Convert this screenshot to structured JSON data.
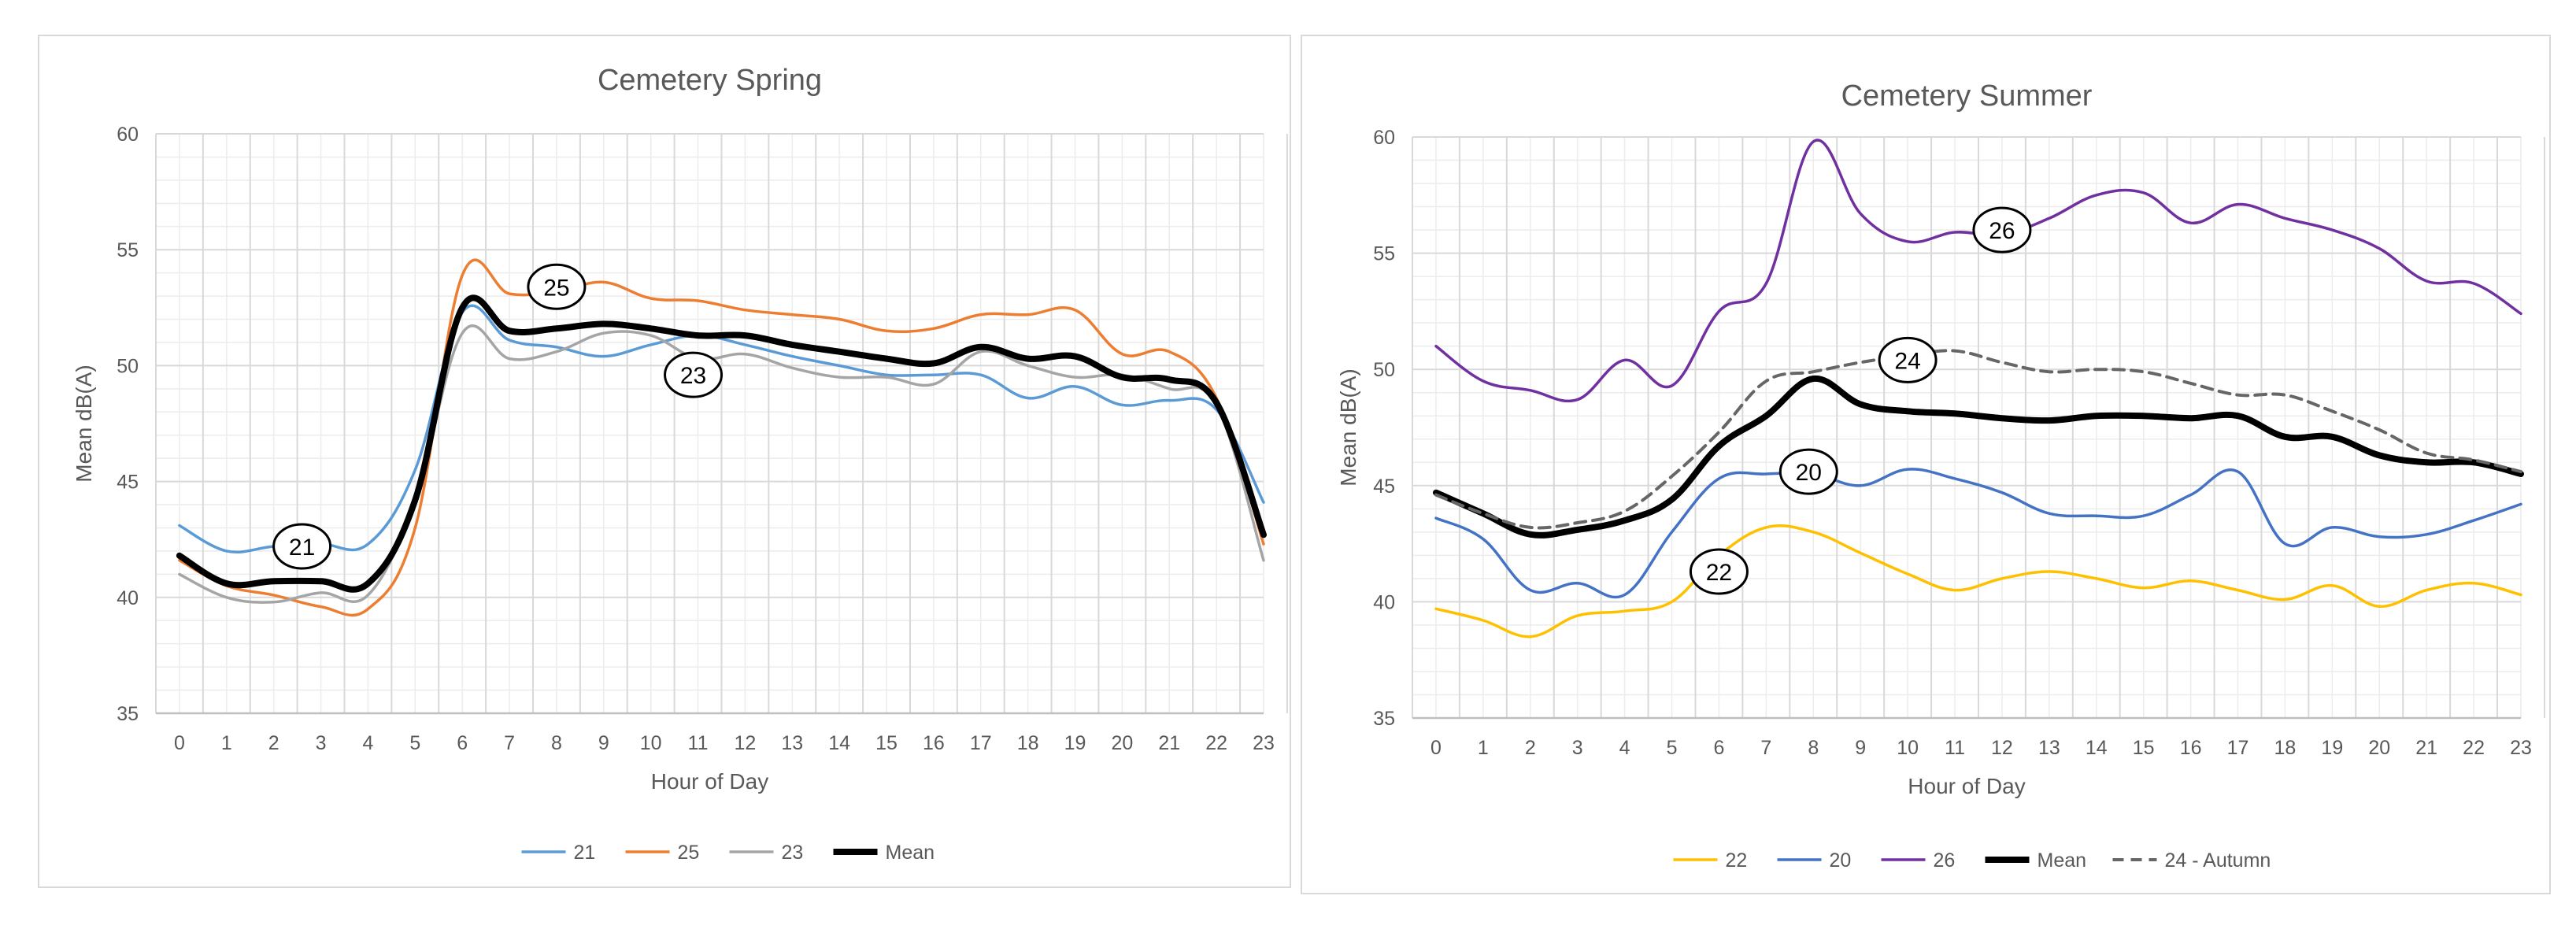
{
  "colors": {
    "s21": "#5b9bd5",
    "s25": "#ed7d31",
    "s23": "#a5a5a5",
    "mean": "#000000",
    "s22": "#ffc000",
    "s20": "#4472c4",
    "s26": "#7030a0",
    "s24": "#666666",
    "grid": "#d9d9d9",
    "text": "#595959"
  },
  "chart_data": [
    {
      "type": "line",
      "title": "Cemetery Spring",
      "xlabel": "Hour of Day",
      "ylabel": "Mean dB(A)",
      "ylim": [
        35,
        60
      ],
      "yticks": [
        "35",
        "40",
        "45",
        "50",
        "55",
        "60"
      ],
      "categories": [
        "0",
        "1",
        "2",
        "3",
        "4",
        "5",
        "6",
        "7",
        "8",
        "9",
        "10",
        "11",
        "12",
        "13",
        "14",
        "15",
        "16",
        "17",
        "18",
        "19",
        "20",
        "21",
        "22",
        "23"
      ],
      "legend_position": "bottom",
      "series": [
        {
          "name": "21",
          "color": "#5b9bd5",
          "width": 3.5,
          "dash": "",
          "values": [
            43.1,
            42.0,
            42.2,
            42.3,
            42.3,
            45.5,
            52.3,
            51.1,
            50.8,
            50.4,
            50.9,
            51.3,
            50.9,
            50.4,
            50.0,
            49.6,
            49.6,
            49.6,
            48.6,
            49.1,
            48.3,
            48.5,
            48.1,
            44.1
          ]
        },
        {
          "name": "25",
          "color": "#ed7d31",
          "width": 3.5,
          "dash": "",
          "values": [
            41.6,
            40.5,
            40.1,
            39.6,
            39.5,
            43.0,
            53.9,
            53.1,
            53.2,
            53.6,
            52.9,
            52.8,
            52.4,
            52.2,
            52.0,
            51.5,
            51.6,
            52.2,
            52.2,
            52.4,
            50.5,
            50.6,
            48.6,
            42.3
          ]
        },
        {
          "name": "23",
          "color": "#a5a5a5",
          "width": 3.5,
          "dash": "",
          "values": [
            41.0,
            40.0,
            39.8,
            40.2,
            40.1,
            44.2,
            51.4,
            50.3,
            50.6,
            51.4,
            51.3,
            50.3,
            50.5,
            49.9,
            49.5,
            49.5,
            49.2,
            50.6,
            50.0,
            49.5,
            49.6,
            49.0,
            48.3,
            41.6
          ]
        },
        {
          "name": "Mean",
          "color": "#000000",
          "width": 8,
          "dash": "",
          "values": [
            41.8,
            40.6,
            40.7,
            40.7,
            40.6,
            44.2,
            52.5,
            51.5,
            51.6,
            51.8,
            51.6,
            51.3,
            51.3,
            50.9,
            50.6,
            50.3,
            50.1,
            50.8,
            50.3,
            50.4,
            49.5,
            49.4,
            48.4,
            42.7
          ]
        }
      ],
      "annotations": [
        {
          "label": "21",
          "hour": 2.6,
          "value": 42.2
        },
        {
          "label": "25",
          "hour": 8.0,
          "value": 53.4
        },
        {
          "label": "23",
          "hour": 10.9,
          "value": 49.6
        }
      ]
    },
    {
      "type": "line",
      "title": "Cemetery Summer",
      "xlabel": "Hour of Day",
      "ylabel": "Mean dB(A)",
      "ylim": [
        35,
        60
      ],
      "yticks": [
        "35",
        "40",
        "45",
        "50",
        "55",
        "60"
      ],
      "categories": [
        "0",
        "1",
        "2",
        "3",
        "4",
        "5",
        "6",
        "7",
        "8",
        "9",
        "10",
        "11",
        "12",
        "13",
        "14",
        "15",
        "16",
        "17",
        "18",
        "19",
        "20",
        "21",
        "22",
        "23"
      ],
      "legend_position": "bottom",
      "series": [
        {
          "name": "22",
          "color": "#ffc000",
          "width": 3.5,
          "dash": "",
          "values": [
            39.7,
            39.2,
            38.5,
            39.4,
            39.6,
            40.0,
            42.0,
            43.2,
            43.0,
            42.1,
            41.2,
            40.5,
            41.0,
            41.3,
            41.0,
            40.6,
            40.9,
            40.5,
            40.1,
            40.7,
            39.8,
            40.5,
            40.8,
            40.3
          ]
        },
        {
          "name": "20",
          "color": "#4472c4",
          "width": 3.5,
          "dash": "",
          "values": [
            43.6,
            42.7,
            40.5,
            40.8,
            40.3,
            43.0,
            45.3,
            45.5,
            45.5,
            45.0,
            45.7,
            45.3,
            44.7,
            43.8,
            43.7,
            43.7,
            44.6,
            45.6,
            42.5,
            43.2,
            42.8,
            42.9,
            43.5,
            44.2
          ]
        },
        {
          "name": "26",
          "color": "#7030a0",
          "width": 3.5,
          "dash": "",
          "values": [
            51.0,
            49.5,
            49.1,
            48.7,
            50.4,
            49.3,
            52.5,
            53.7,
            59.8,
            56.7,
            55.5,
            55.9,
            55.8,
            56.5,
            57.5,
            57.6,
            56.3,
            57.1,
            56.5,
            56.0,
            55.2,
            53.8,
            53.7,
            52.4
          ]
        },
        {
          "name": "Mean",
          "color": "#000000",
          "width": 8,
          "dash": "",
          "values": [
            44.7,
            43.8,
            42.9,
            43.1,
            43.5,
            44.4,
            46.7,
            48.0,
            49.6,
            48.5,
            48.2,
            48.1,
            47.9,
            47.8,
            48.0,
            48.0,
            47.9,
            48.0,
            47.1,
            47.1,
            46.3,
            46.0,
            46.0,
            45.5
          ]
        },
        {
          "name": "24 - Autumn",
          "color": "#666666",
          "width": 4,
          "dash": "14,9",
          "values": [
            44.6,
            43.8,
            43.2,
            43.4,
            43.9,
            45.4,
            47.3,
            49.5,
            49.9,
            50.3,
            50.6,
            50.8,
            50.3,
            49.9,
            50.0,
            49.9,
            49.4,
            48.9,
            48.9,
            48.2,
            47.4,
            46.4,
            46.1,
            45.6
          ]
        }
      ],
      "annotations": [
        {
          "label": "26",
          "hour": 12.0,
          "value": 56.0
        },
        {
          "label": "24",
          "hour": 10.0,
          "value": 50.4
        },
        {
          "label": "20",
          "hour": 7.9,
          "value": 45.6
        },
        {
          "label": "22",
          "hour": 6.0,
          "value": 41.3
        }
      ]
    }
  ]
}
